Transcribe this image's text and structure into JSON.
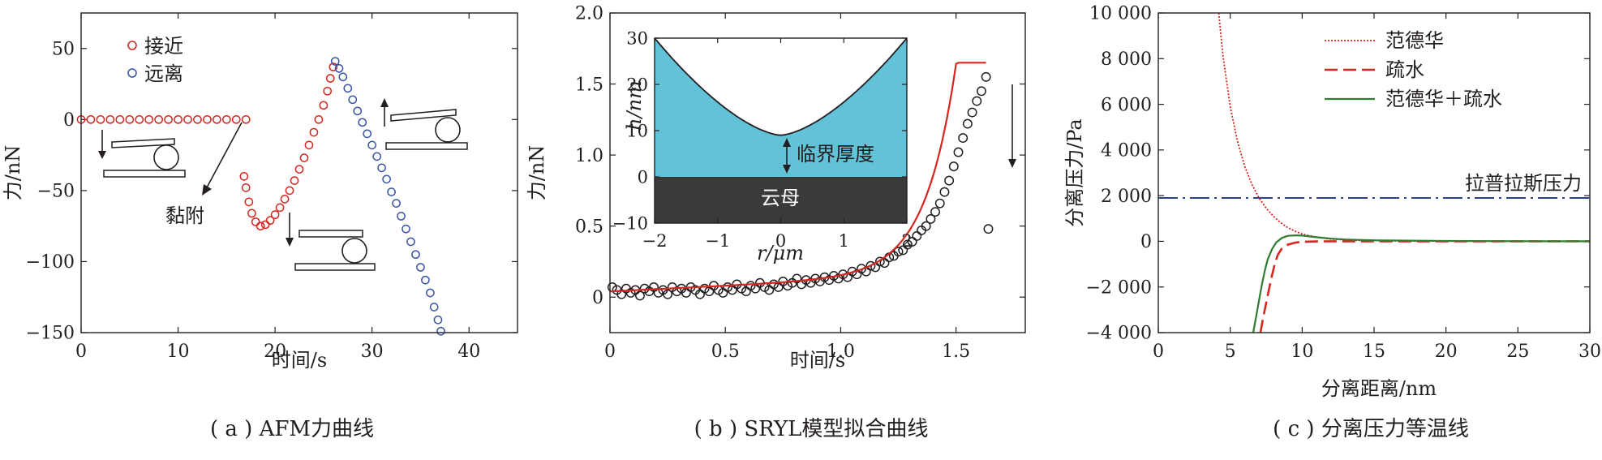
{
  "chart_data": [
    {
      "id": "a",
      "type": "scatter",
      "caption": "( a ) AFM力曲线",
      "xlabel": "时间/s",
      "ylabel": "力/nN",
      "xlim": [
        0,
        45
      ],
      "ylim": [
        -150,
        75
      ],
      "xticks": [
        0,
        10,
        20,
        30,
        40
      ],
      "yticks": [
        -150,
        -100,
        -50,
        0,
        50
      ],
      "ytick_labels": [
        "−150",
        "−100",
        "−50",
        "0",
        "50"
      ],
      "legend_placement": "top-left",
      "annotation": "黏附",
      "series": [
        {
          "name": "接近",
          "color": "#d7261e",
          "points": [
            [
              0,
              0
            ],
            [
              1,
              0
            ],
            [
              2,
              0
            ],
            [
              3,
              0
            ],
            [
              4,
              0
            ],
            [
              5,
              0
            ],
            [
              6,
              0
            ],
            [
              7,
              0
            ],
            [
              8,
              0
            ],
            [
              9,
              0
            ],
            [
              10,
              0
            ],
            [
              11,
              0
            ],
            [
              12,
              0
            ],
            [
              13,
              0
            ],
            [
              14,
              0
            ],
            [
              15,
              0
            ],
            [
              16,
              0
            ],
            [
              17,
              0
            ],
            [
              16.8,
              -40
            ],
            [
              17,
              -48
            ],
            [
              17.3,
              -58
            ],
            [
              17.6,
              -66
            ],
            [
              18,
              -72
            ],
            [
              18.5,
              -75
            ],
            [
              19,
              -74
            ],
            [
              19.5,
              -71
            ],
            [
              20,
              -67
            ],
            [
              20.5,
              -62
            ],
            [
              21,
              -56
            ],
            [
              21.5,
              -50
            ],
            [
              22,
              -43
            ],
            [
              22.5,
              -35
            ],
            [
              23,
              -27
            ],
            [
              23.5,
              -18
            ],
            [
              24,
              -9
            ],
            [
              24.5,
              0
            ],
            [
              25,
              10
            ],
            [
              25.4,
              20
            ],
            [
              25.7,
              29
            ],
            [
              26,
              37
            ]
          ]
        },
        {
          "name": "远离",
          "color": "#3b55a5",
          "points": [
            [
              26.2,
              41
            ],
            [
              26.6,
              36
            ],
            [
              27,
              30
            ],
            [
              27.5,
              22
            ],
            [
              28,
              14
            ],
            [
              28.5,
              6
            ],
            [
              29,
              -2
            ],
            [
              29.5,
              -10
            ],
            [
              30,
              -18
            ],
            [
              30.5,
              -26
            ],
            [
              31,
              -34
            ],
            [
              31.5,
              -42
            ],
            [
              32,
              -51
            ],
            [
              32.5,
              -59
            ],
            [
              33,
              -68
            ],
            [
              33.5,
              -77
            ],
            [
              34,
              -86
            ],
            [
              34.5,
              -95
            ],
            [
              35,
              -104
            ],
            [
              35.5,
              -113
            ],
            [
              36,
              -122
            ],
            [
              36.4,
              -132
            ],
            [
              36.8,
              -141
            ],
            [
              37.1,
              -149
            ]
          ]
        }
      ]
    },
    {
      "id": "b",
      "type": "scatter",
      "caption": "( b ) SRYL模型拟合曲线",
      "xlabel": "时间/s",
      "ylabel": "力/nN",
      "xlim": [
        0,
        1.8
      ],
      "ylim": [
        -0.25,
        2.0
      ],
      "xticks": [
        0,
        0.5,
        1.0,
        1.5
      ],
      "xtick_labels": [
        "0",
        "0.5",
        "1.0",
        "1.5"
      ],
      "yticks": [
        0,
        0.5,
        1.0,
        1.5,
        2.0
      ],
      "ytick_labels": [
        "0",
        "0.5",
        "1.0",
        "1.5",
        "2.0"
      ],
      "series": [
        {
          "name": "",
          "style": "open-circles",
          "color": "#231f20"
        },
        {
          "name": "",
          "style": "line",
          "color": "#d7261e"
        }
      ],
      "fit": {
        "baseline": 0.04,
        "slope": 0.08,
        "amplitude": 0.045,
        "rate": 7.5
      },
      "scatter_points": [
        [
          0.01,
          0.07
        ],
        [
          0.03,
          0.05
        ],
        [
          0.05,
          0.02
        ],
        [
          0.07,
          0.06
        ],
        [
          0.09,
          0.03
        ],
        [
          0.11,
          0.05
        ],
        [
          0.13,
          0.01
        ],
        [
          0.15,
          0.06
        ],
        [
          0.17,
          0.04
        ],
        [
          0.19,
          0.07
        ],
        [
          0.21,
          0.03
        ],
        [
          0.23,
          0.05
        ],
        [
          0.25,
          0.02
        ],
        [
          0.27,
          0.07
        ],
        [
          0.29,
          0.04
        ],
        [
          0.31,
          0.06
        ],
        [
          0.33,
          0.03
        ],
        [
          0.35,
          0.07
        ],
        [
          0.37,
          0.05
        ],
        [
          0.39,
          0.02
        ],
        [
          0.41,
          0.06
        ],
        [
          0.43,
          0.04
        ],
        [
          0.45,
          0.08
        ],
        [
          0.47,
          0.05
        ],
        [
          0.49,
          0.03
        ],
        [
          0.51,
          0.07
        ],
        [
          0.53,
          0.05
        ],
        [
          0.55,
          0.09
        ],
        [
          0.57,
          0.06
        ],
        [
          0.59,
          0.04
        ],
        [
          0.61,
          0.08
        ],
        [
          0.63,
          0.06
        ],
        [
          0.65,
          0.1
        ],
        [
          0.67,
          0.07
        ],
        [
          0.69,
          0.05
        ],
        [
          0.71,
          0.09
        ],
        [
          0.73,
          0.07
        ],
        [
          0.75,
          0.11
        ],
        [
          0.77,
          0.08
        ],
        [
          0.79,
          0.1
        ],
        [
          0.81,
          0.13
        ],
        [
          0.83,
          0.09
        ],
        [
          0.85,
          0.12
        ],
        [
          0.87,
          0.1
        ],
        [
          0.89,
          0.13
        ],
        [
          0.91,
          0.11
        ],
        [
          0.93,
          0.14
        ],
        [
          0.95,
          0.12
        ],
        [
          0.97,
          0.15
        ],
        [
          0.99,
          0.13
        ],
        [
          1.01,
          0.16
        ],
        [
          1.03,
          0.14
        ],
        [
          1.05,
          0.18
        ],
        [
          1.07,
          0.16
        ],
        [
          1.09,
          0.2
        ],
        [
          1.11,
          0.18
        ],
        [
          1.13,
          0.22
        ],
        [
          1.15,
          0.21
        ],
        [
          1.17,
          0.25
        ],
        [
          1.19,
          0.24
        ],
        [
          1.21,
          0.28
        ],
        [
          1.23,
          0.29
        ],
        [
          1.25,
          0.32
        ],
        [
          1.27,
          0.33
        ],
        [
          1.29,
          0.37
        ],
        [
          1.31,
          0.39
        ],
        [
          1.33,
          0.43
        ],
        [
          1.35,
          0.47
        ],
        [
          1.37,
          0.5
        ],
        [
          1.39,
          0.55
        ],
        [
          1.41,
          0.6
        ],
        [
          1.43,
          0.66
        ],
        [
          1.45,
          0.74
        ],
        [
          1.47,
          0.82
        ],
        [
          1.49,
          0.92
        ],
        [
          1.51,
          1.02
        ],
        [
          1.53,
          1.12
        ],
        [
          1.55,
          1.22
        ],
        [
          1.57,
          1.3
        ],
        [
          1.59,
          1.38
        ],
        [
          1.61,
          1.45
        ],
        [
          1.63,
          1.55
        ],
        [
          1.64,
          0.48
        ]
      ],
      "inset": {
        "xlabel": "r/μm",
        "ylabel": "h/nm",
        "xlim": [
          -2,
          2
        ],
        "ylim": [
          -10,
          30
        ],
        "xticks": [
          -2,
          -1,
          0,
          1,
          2
        ],
        "xtick_labels": [
          "−2",
          "−1",
          "0",
          "1",
          "2"
        ],
        "yticks": [
          -10,
          0,
          10,
          20,
          30
        ],
        "ytick_labels": [
          "−10",
          "0",
          "10",
          "20",
          "30"
        ],
        "profile": [
          [
            -2,
            30
          ],
          [
            -1.5,
            22
          ],
          [
            -1,
            15.5
          ],
          [
            -0.5,
            11
          ],
          [
            0,
            9
          ],
          [
            0.5,
            11
          ],
          [
            1,
            15.5
          ],
          [
            1.5,
            22
          ],
          [
            2,
            30
          ]
        ],
        "water_color": "#62c2d8",
        "mica_color": "#3a3a3a",
        "labels": {
          "critical_thickness": "临界厚度",
          "mica": "云母"
        }
      }
    },
    {
      "id": "c",
      "type": "line",
      "caption": "( c ) 分离压力等温线",
      "xlabel": "分离距离/nm",
      "ylabel": "分离压力/Pa",
      "xlim": [
        0,
        30
      ],
      "ylim": [
        -4000,
        10000
      ],
      "xticks": [
        0,
        5,
        10,
        15,
        20,
        25,
        30
      ],
      "yticks": [
        -4000,
        -2000,
        0,
        2000,
        4000,
        6000,
        8000,
        10000
      ],
      "ytick_labels": [
        "−4 000",
        "−2 000",
        "0",
        "2 000",
        "4 000",
        "6 000",
        "8 000",
        "10 000"
      ],
      "legend_placement": "top-right",
      "annotation": "拉普拉斯压力",
      "laplace_value": 1900,
      "series": [
        {
          "name": "范德华",
          "color": "#d7261e",
          "style": "dotted",
          "points": [
            [
              4.2,
              10000
            ],
            [
              4.5,
              8100
            ],
            [
              5,
              5900
            ],
            [
              5.5,
              4400
            ],
            [
              6,
              3300
            ],
            [
              6.5,
              2500
            ],
            [
              7,
              1900
            ],
            [
              7.5,
              1450
            ],
            [
              8,
              1100
            ],
            [
              8.5,
              820
            ],
            [
              9,
              600
            ],
            [
              9.5,
              440
            ],
            [
              10,
              320
            ],
            [
              11,
              180
            ],
            [
              12,
              100
            ],
            [
              13,
              60
            ],
            [
              14,
              40
            ],
            [
              16,
              20
            ],
            [
              20,
              10
            ],
            [
              25,
              5
            ],
            [
              30,
              2
            ]
          ]
        },
        {
          "name": "疏水",
          "color": "#d7261e",
          "style": "dashed",
          "points": [
            [
              7.1,
              -4000
            ],
            [
              7.3,
              -3300
            ],
            [
              7.5,
              -2700
            ],
            [
              7.7,
              -2100
            ],
            [
              7.9,
              -1500
            ],
            [
              8.1,
              -1000
            ],
            [
              8.3,
              -600
            ],
            [
              8.6,
              -300
            ],
            [
              9,
              -150
            ],
            [
              9.5,
              -60
            ],
            [
              10,
              -20
            ],
            [
              11,
              -5
            ],
            [
              12,
              0
            ],
            [
              15,
              0
            ],
            [
              20,
              0
            ],
            [
              25,
              0
            ],
            [
              30,
              0
            ]
          ]
        },
        {
          "name": "范德华＋疏水",
          "color": "#2e7d32",
          "style": "solid",
          "points": [
            [
              6.6,
              -4000
            ],
            [
              6.8,
              -3300
            ],
            [
              7,
              -2600
            ],
            [
              7.2,
              -1900
            ],
            [
              7.4,
              -1300
            ],
            [
              7.6,
              -800
            ],
            [
              7.9,
              -350
            ],
            [
              8.2,
              -50
            ],
            [
              8.6,
              150
            ],
            [
              9,
              240
            ],
            [
              9.5,
              260
            ],
            [
              10,
              250
            ],
            [
              11,
              180
            ],
            [
              12,
              120
            ],
            [
              13,
              80
            ],
            [
              15,
              45
            ],
            [
              20,
              15
            ],
            [
              25,
              6
            ],
            [
              30,
              2
            ]
          ]
        }
      ]
    }
  ]
}
